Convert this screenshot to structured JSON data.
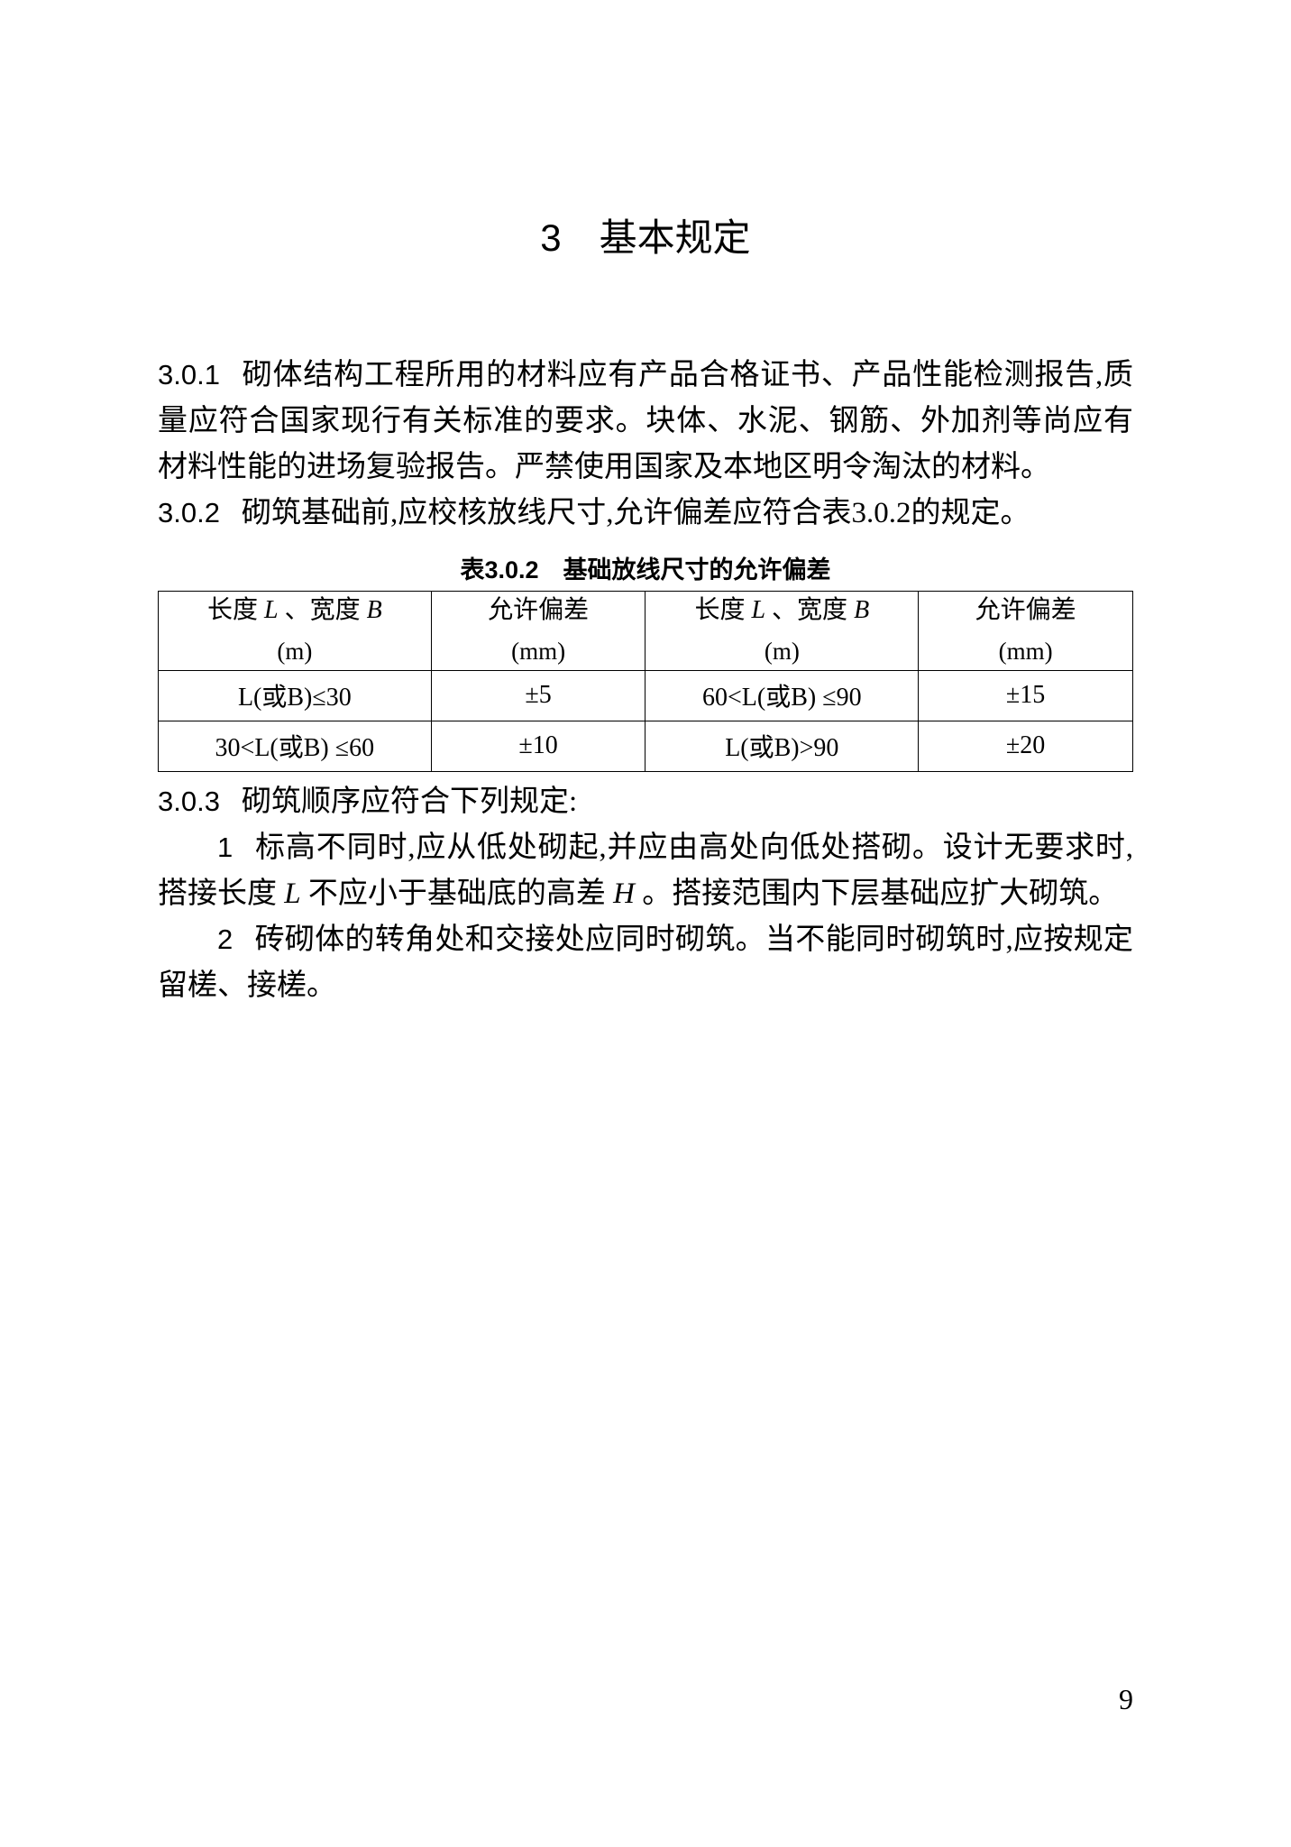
{
  "chapter": {
    "number": "3",
    "title": "基本规定"
  },
  "clauses": [
    {
      "number": "3.0.1",
      "text": "砌体结构工程所用的材料应有产品合格证书、产品性能检测报告,质量应符合国家现行有关标准的要求。块体、水泥、钢筋、外加剂等尚应有材料性能的进场复验报告。严禁使用国家及本地区明令淘汰的材料。"
    },
    {
      "number": "3.0.2",
      "text": "砌筑基础前,应校核放线尺寸,允许偏差应符合表3.0.2的规定。"
    }
  ],
  "table": {
    "caption": "表3.0.2　基础放线尺寸的允许偏差",
    "headers": [
      {
        "line1": "长度 L 、宽度 B",
        "line2": "(m)"
      },
      {
        "line1": "允许偏差",
        "line2": "(mm)"
      },
      {
        "line1": "长度 L 、宽度 B",
        "line2": "(m)"
      },
      {
        "line1": "允许偏差",
        "line2": "(mm)"
      }
    ],
    "rows": [
      [
        "L(或B)≤30",
        "±5",
        "60<L(或B) ≤90",
        "±15"
      ],
      [
        "30<L(或B) ≤60",
        "±10",
        "L(或B)>90",
        "±20"
      ]
    ]
  },
  "clause3": {
    "number": "3.0.3",
    "text": "砌筑顺序应符合下列规定:",
    "items": [
      {
        "number": "1",
        "text": "标高不同时,应从低处砌起,并应由高处向低处搭砌。设计无要求时,搭接长度 L 不应小于基础底的高差 H 。搭接范围内下层基础应扩大砌筑。"
      },
      {
        "number": "2",
        "text": "砖砌体的转角处和交接处应同时砌筑。当不能同时砌筑时,应按规定留槎、接槎。"
      }
    ]
  },
  "pageNumber": "9"
}
